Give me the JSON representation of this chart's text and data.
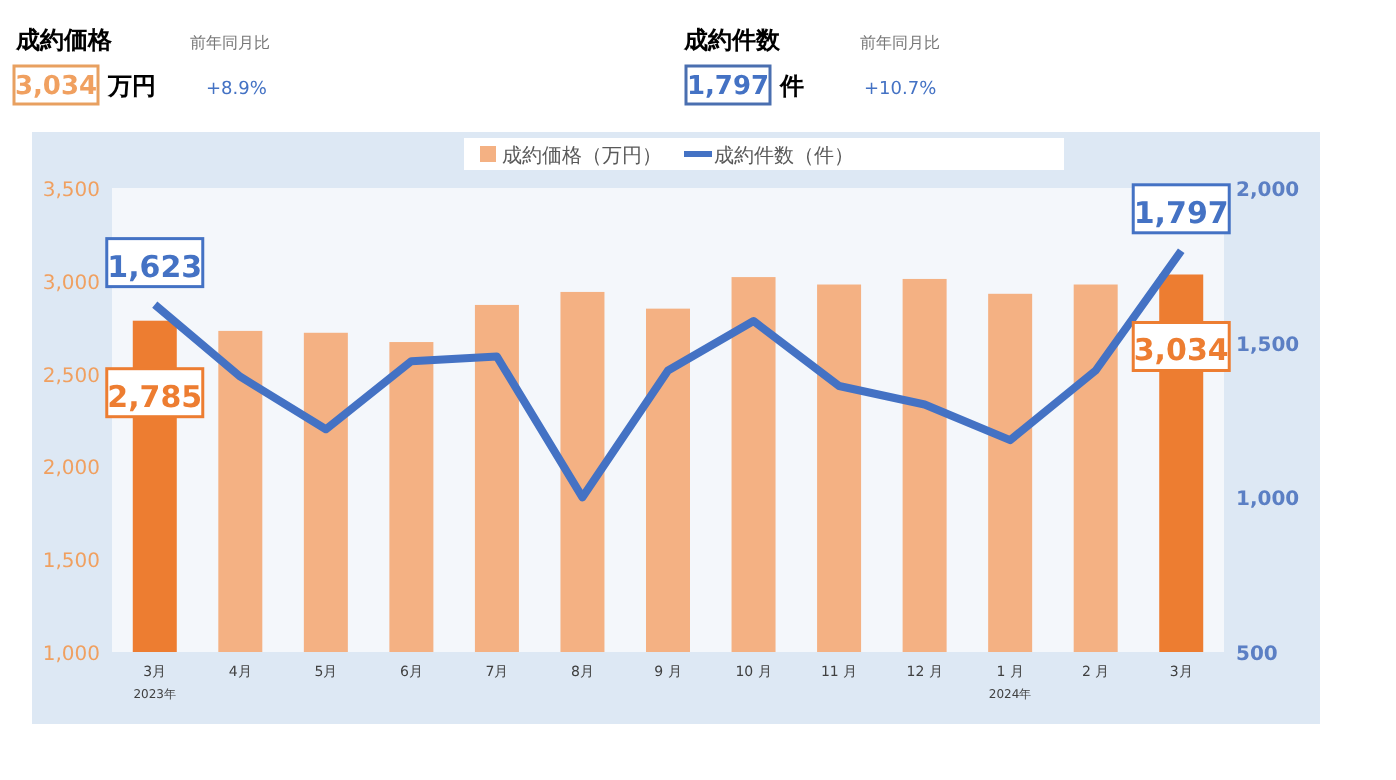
{
  "chart_data": {
    "type": "bar",
    "annotations": [
      "成約価格",
      "3,034",
      "万円",
      "前年同月比",
      "+8.9%",
      "成約件数",
      "1,797",
      "件",
      "前年同月比",
      "+10.7%",
      "2023年",
      "2024年"
    ],
    "categories": [
      "3月",
      "4月",
      "5月",
      "6月",
      "7月",
      "8月",
      "9 月",
      "10 月",
      "11 月",
      "12 月",
      "1 月",
      "2 月",
      "3月"
    ],
    "series": [
      {
        "name": "成約価格（万円）",
        "color": "#f4b183",
        "colors": [
          "#ed7d31",
          "#f4b183",
          "#f4b183",
          "#f4b183",
          "#f4b183",
          "#f4b183",
          "#f4b183",
          "#f4b183",
          "#f4b183",
          "#f4b183",
          "#f4b183",
          "#f4b183",
          "#ed7d31"
        ],
        "values": [
          2785,
          2730,
          2720,
          2670,
          2870,
          2940,
          2850,
          3020,
          2980,
          3010,
          2930,
          2980,
          3034
        ],
        "value_labels": [
          "2,785",
          null,
          null,
          null,
          null,
          null,
          null,
          null,
          null,
          null,
          null,
          null,
          "3,034"
        ]
      },
      {
        "name": "成約件数（件）",
        "type": "line",
        "axis": "y2",
        "color": "#4472c4",
        "values": [
          1623,
          1390,
          1220,
          1440,
          1455,
          1000,
          1410,
          1570,
          1360,
          1300,
          1185,
          1410,
          1797
        ],
        "value_labels": [
          "1,623",
          null,
          null,
          null,
          null,
          null,
          null,
          null,
          null,
          null,
          null,
          null,
          "1,797"
        ]
      }
    ],
    "ylim": [
      1000,
      3500
    ],
    "yticks": [
      {
        "value": 1000,
        "label": "1,000"
      },
      {
        "value": 1500,
        "label": "1,500"
      },
      {
        "value": 2000,
        "label": "2,000"
      },
      {
        "value": 2500,
        "label": "2,500"
      },
      {
        "value": 3000,
        "label": "3,000"
      },
      {
        "value": 3500,
        "label": "3,500"
      }
    ],
    "y2lim": [
      500,
      2000
    ],
    "y2ticks": [
      500,
      {
        "value": 1000,
        "label": "1,000"
      },
      {
        "value": 1500,
        "label": "1,500"
      },
      {
        "value": 2000,
        "label": "2,000"
      }
    ],
    "legend": "top",
    "grid": false
  }
}
